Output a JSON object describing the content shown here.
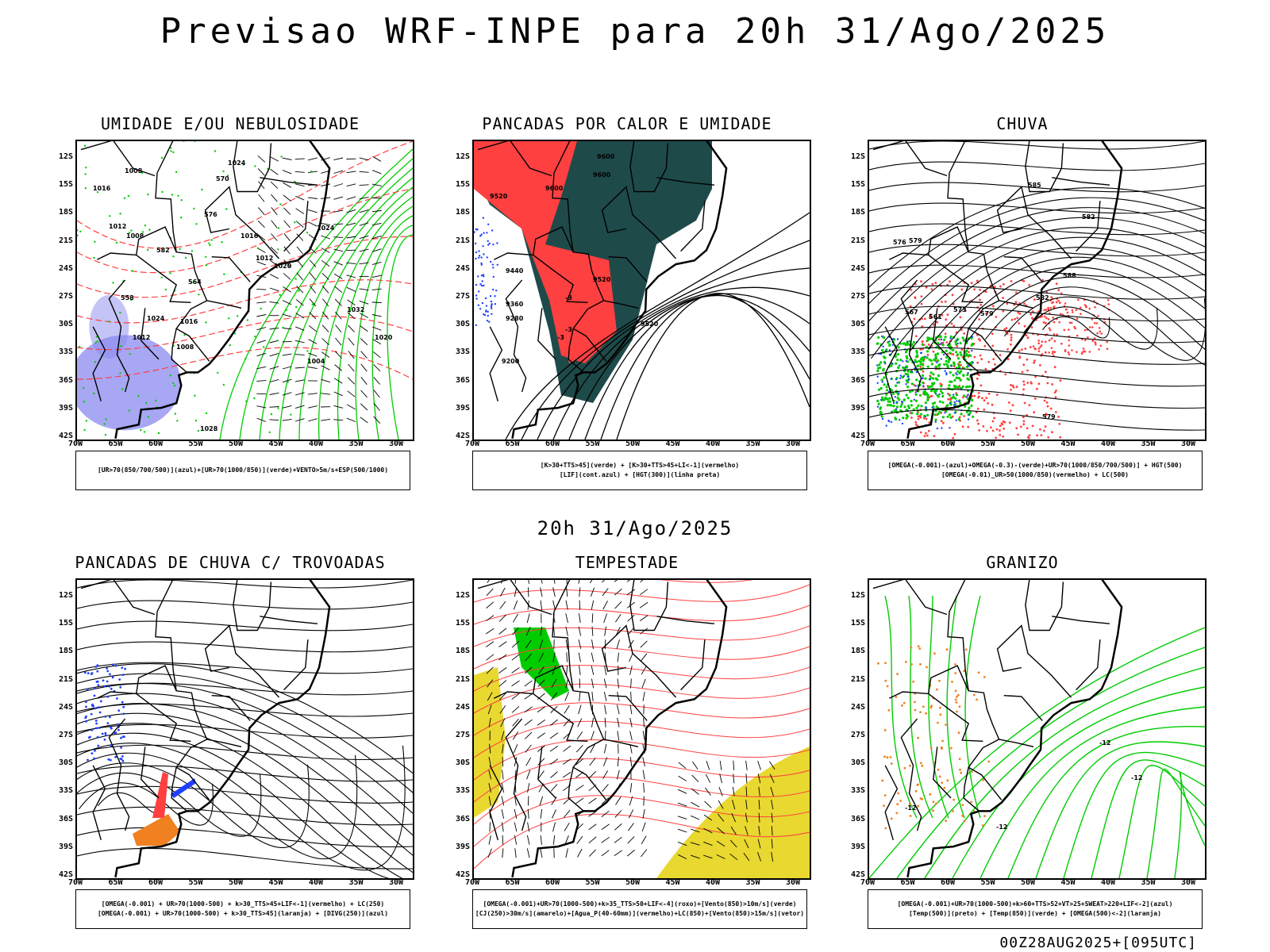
{
  "title": "Previsao WRF-INPE  para 20h 31/Ago/2025",
  "mid_title": "20h 31/Ago/2025",
  "footer": "00Z28AUG2025+[095UTC]",
  "lat_ticks": [
    "12S",
    "15S",
    "18S",
    "21S",
    "24S",
    "27S",
    "30S",
    "33S",
    "36S",
    "39S",
    "42S"
  ],
  "lon_ticks": [
    "70W",
    "65W",
    "60W",
    "55W",
    "50W",
    "45W",
    "40W",
    "35W",
    "30W"
  ],
  "colors": {
    "humid_blue": "#8a8af0",
    "green": "#00cc00",
    "red": "#ff4040",
    "dark_teal": "#1f4a4a",
    "orange": "#f08020",
    "yellow": "#e8d830",
    "blue": "#2040ff"
  },
  "panels": [
    {
      "id": "umidade",
      "title": "UMIDADE E/OU NEBULOSIDADE",
      "legend": [
        "[UR>70(850/700/500)](azul)+[UR>70(1000/850)](verde)+VENTO>5m/s+ESP(500/1000)"
      ],
      "contour_labels": [
        "1008",
        "1016",
        "1012",
        "1008",
        "1016",
        "1012",
        "1020",
        "1024",
        "1024",
        "1016",
        "1012",
        "1008",
        "1004",
        "1020",
        "1032",
        "1028",
        "1024",
        "570",
        "576",
        "582",
        "564",
        "558"
      ]
    },
    {
      "id": "pancadas-calor",
      "title": "PANCADAS POR CALOR E UMIDADE",
      "legend": [
        "[K>30+TTS>45](verde) + [K>30+TTS>45+LI<-1](vermelho)",
        "[LIF](cont.azul) + [HGT(300)](linha preta)"
      ],
      "contour_labels": [
        "9600",
        "9600",
        "9520",
        "9600",
        "9440",
        "9520",
        "9360",
        "9280",
        "9520",
        "9200",
        "-3",
        "-3",
        "-3"
      ]
    },
    {
      "id": "chuva",
      "title": "CHUVA",
      "legend": [
        "[OMEGA(-0.001)-(azul)+OMEGA(-0.3)-(verde)+UR>70(1000/850/700/500)] + HGT(500)",
        "[OMEGA(-0.01)_UR>50(1000/850)(vermelho) + LC(500)"
      ],
      "contour_labels": [
        "585",
        "582",
        "576",
        "579",
        "567",
        "561",
        "573",
        "579",
        "582",
        "588",
        "579"
      ]
    },
    {
      "id": "pancadas-trovoadas",
      "title": "PANCADAS DE CHUVA C/ TROVOADAS",
      "legend": [
        "[OMEGA(-0.001) + UR>70(1000-500) + k>30_TTS>45+LIF<-1](vermelho) + LC(250)",
        "[OMEGA(-0.001) + UR>70(1000-500) + k>30_TTS>45](laranja) + [DIVG(250)](azul)"
      ],
      "contour_labels": []
    },
    {
      "id": "tempestade",
      "title": "TEMPESTADE",
      "legend": [
        "[OMEGA(-0.001)+UR>70(1000-500)+k>35_TTS>50+LIF<-4](roxo)+[Vento(850)>10m/s](verde)",
        "[CJ(250)>30m/s](amarelo)+[Agua_P(40-60mm)](vermelho)+LC(850)+[Vento(850)>15m/s](vetor)"
      ],
      "contour_labels": []
    },
    {
      "id": "granizo",
      "title": "GRANIZO",
      "legend": [
        "[OMEGA(-0.001)+UR>70(1000-500)+k>60+TTS>52+VT>25+SWEAT>220+LIF<-2](azul)",
        "[Temp(500)](preto) + [Temp(850)](verde) + [OMEGA(500)<-2](laranja)"
      ],
      "contour_labels": [
        "-12",
        "-12",
        "-12",
        "-12"
      ]
    }
  ]
}
